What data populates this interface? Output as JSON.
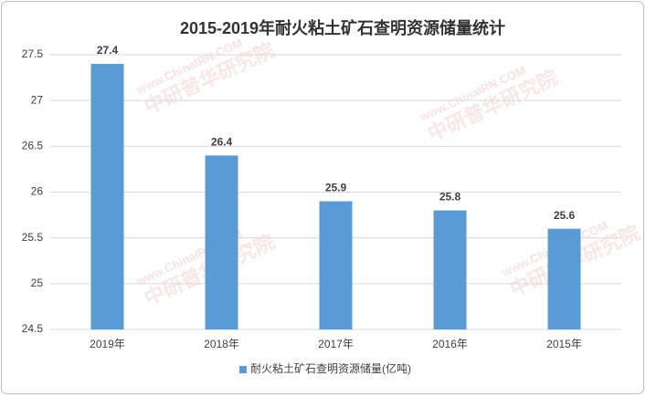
{
  "chart_data": {
    "type": "bar",
    "title": "2015-2019年耐火粘土矿石查明资源储量统计",
    "categories": [
      "2019年",
      "2018年",
      "2017年",
      "2016年",
      "2015年"
    ],
    "series": [
      {
        "name": "耐火粘土矿石查明资源储量(亿吨)",
        "color": "#5b9bd5",
        "values": [
          27.4,
          26.4,
          25.9,
          25.8,
          25.6
        ]
      }
    ],
    "ylim": [
      24.5,
      27.5
    ],
    "yticks": [
      24.5,
      25,
      25.5,
      26,
      26.5,
      27,
      27.5
    ],
    "grid": true,
    "legend": "bottom",
    "watermark": [
      "www.ChinaIRN.COM",
      "中研普华研究院"
    ]
  }
}
